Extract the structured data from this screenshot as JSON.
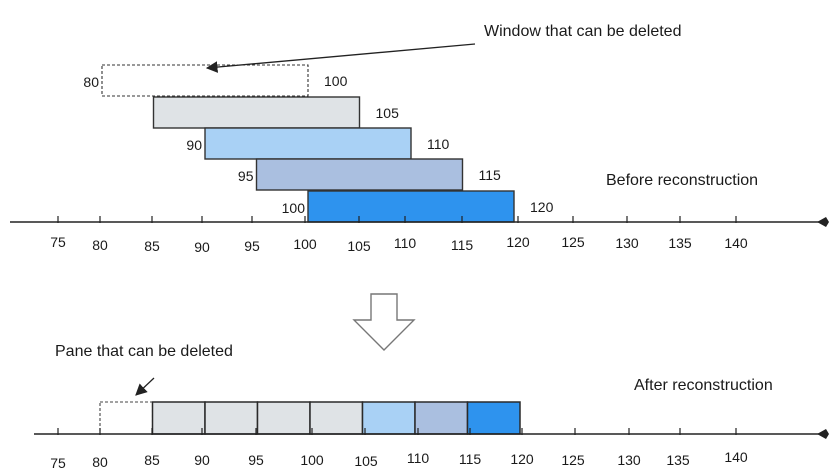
{
  "captions": {
    "window_deletable": "Window that can be deleted",
    "before": "Before reconstruction",
    "pane_deletable": "Pane that can be deleted",
    "after": "After reconstruction"
  },
  "before": {
    "windows": [
      {
        "start": 80,
        "end": 100,
        "start_label": "80",
        "end_label": "100",
        "fill": "#ffffff",
        "dashed": true
      },
      {
        "start": 85,
        "end": 105,
        "start_label": "",
        "end_label": "105",
        "fill": "#dfe3e6",
        "dashed": false
      },
      {
        "start": 90,
        "end": 110,
        "start_label": "90",
        "end_label": "110",
        "fill": "#a9d1f5",
        "dashed": false
      },
      {
        "start": 95,
        "end": 115,
        "start_label": "95",
        "end_label": "115",
        "fill": "#aabfe0",
        "dashed": false
      },
      {
        "start": 100,
        "end": 120,
        "start_label": "100",
        "end_label": "120",
        "fill": "#2e93ee",
        "dashed": false
      }
    ],
    "axis_ticks": [
      "75",
      "80",
      "85",
      "90",
      "95",
      "100",
      "105",
      "110",
      "115",
      "120",
      "125",
      "130",
      "135",
      "140"
    ]
  },
  "after": {
    "panes": [
      {
        "start": 80,
        "end": 85,
        "fill": "#ffffff",
        "dashed": true
      },
      {
        "start": 85,
        "end": 90,
        "fill": "#dfe3e6",
        "dashed": false
      },
      {
        "start": 90,
        "end": 95,
        "fill": "#dfe3e6",
        "dashed": false
      },
      {
        "start": 95,
        "end": 100,
        "fill": "#dfe3e6",
        "dashed": false
      },
      {
        "start": 100,
        "end": 105,
        "fill": "#dfe3e6",
        "dashed": false
      },
      {
        "start": 105,
        "end": 110,
        "fill": "#a9d1f5",
        "dashed": false
      },
      {
        "start": 110,
        "end": 115,
        "fill": "#aabfe0",
        "dashed": false
      },
      {
        "start": 115,
        "end": 120,
        "fill": "#2e93ee",
        "dashed": false
      }
    ],
    "axis_ticks": [
      "75",
      "80",
      "85",
      "90",
      "95",
      "100",
      "105",
      "110",
      "115",
      "120",
      "125",
      "130",
      "135",
      "140"
    ]
  },
  "colors": {
    "axis": "#222222",
    "border": "#333333"
  }
}
